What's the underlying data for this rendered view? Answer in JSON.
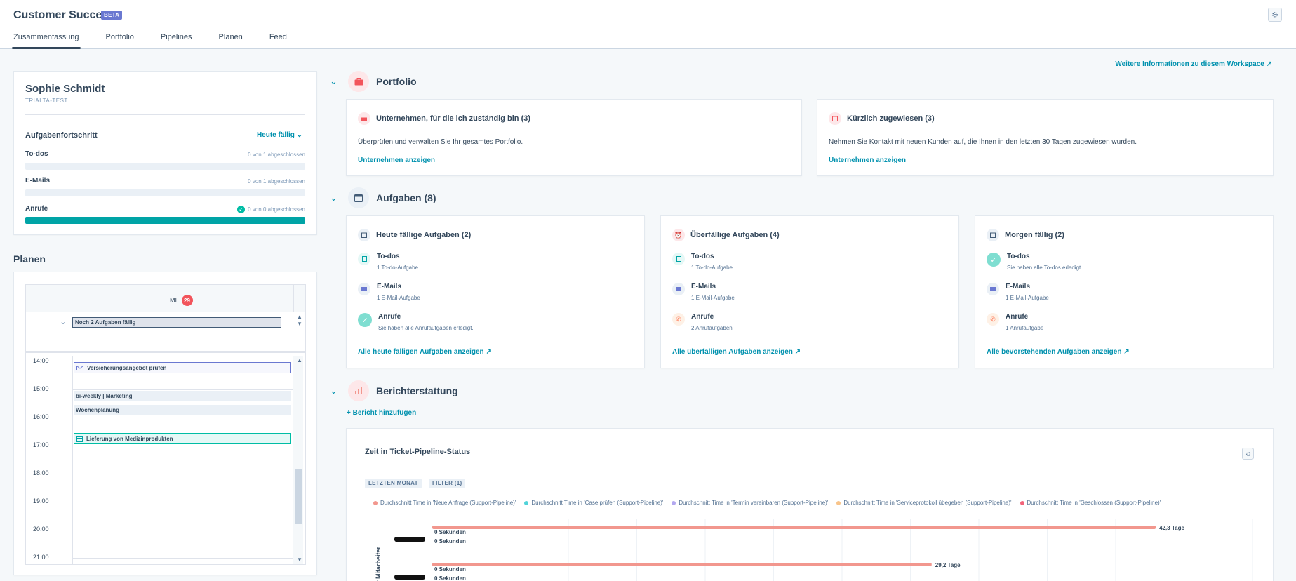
{
  "header": {
    "title": "Customer Success",
    "badge": "BETA",
    "tabs": [
      {
        "label": "Zusammenfassung",
        "active": true
      },
      {
        "label": "Portfolio",
        "active": false
      },
      {
        "label": "Pipelines",
        "active": false
      },
      {
        "label": "Planen",
        "active": false
      },
      {
        "label": "Feed",
        "active": false
      }
    ]
  },
  "profile": {
    "name": "Sophie Schmidt",
    "subtitle": "TRIALTA-TEST",
    "progress_title": "Aufgabenfortschritt",
    "filter_label": "Heute fällig ⌄",
    "rows": [
      {
        "label": "To-dos",
        "meta": "0 von 1 abgeschlossen",
        "progress": 0
      },
      {
        "label": "E-Mails",
        "meta": "0 von 1 abgeschlossen",
        "progress": 0
      },
      {
        "label": "Anrufe",
        "meta": "0 von 0 abgeschlossen",
        "progress": 1.0
      }
    ]
  },
  "planen": {
    "title": "Planen",
    "day_label": "MI.",
    "day_number": "29",
    "allday_event": "Noch 2 Aufgaben fällig",
    "times": [
      "14:00",
      "15:00",
      "16:00",
      "17:00",
      "18:00",
      "19:00",
      "20:00",
      "21:00"
    ],
    "events": [
      {
        "label": "Versicherungsangebot prüfen",
        "style": "blue",
        "icon": "mail-icon"
      },
      {
        "label": "bi-weekly | Marketing",
        "style": "grey"
      },
      {
        "label": "Wochenplanung",
        "style": "grey"
      },
      {
        "label": "Lieferung von Medizinprodukten",
        "style": "green",
        "icon": "calendar-icon"
      }
    ]
  },
  "workspace_link": "Weitere Informationen zu diesem Workspace",
  "portfolio": {
    "title": "Portfolio",
    "cards": [
      {
        "title": "Unternehmen, für die ich zuständig bin (3)",
        "desc": "Überprüfen und verwalten Sie Ihr gesamtes Portfolio.",
        "link": "Unternehmen anzeigen"
      },
      {
        "title": "Kürzlich zugewiesen (3)",
        "desc": "Nehmen Sie Kontakt mit neuen Kunden auf, die Ihnen in den letzten 30 Tagen zugewiesen wurden.",
        "link": "Unternehmen anzeigen"
      }
    ]
  },
  "aufgaben": {
    "title": "Aufgaben (8)",
    "cards": [
      {
        "title": "Heute fällige Aufgaben (2)",
        "items": [
          {
            "label": "To-dos",
            "sub": "1 To-do-Aufgabe"
          },
          {
            "label": "E-Mails",
            "sub": "1 E-Mail-Aufgabe"
          },
          {
            "label": "Anrufe",
            "sub": "Sie haben alle Anrufaufgaben erledigt."
          }
        ],
        "link": "Alle heute fälligen Aufgaben anzeigen"
      },
      {
        "title": "Überfällige Aufgaben (4)",
        "items": [
          {
            "label": "To-dos",
            "sub": "1 To-do-Aufgabe"
          },
          {
            "label": "E-Mails",
            "sub": "1 E-Mail-Aufgabe"
          },
          {
            "label": "Anrufe",
            "sub": "2 Anrufaufgaben"
          }
        ],
        "link": "Alle überfälligen Aufgaben anzeigen"
      },
      {
        "title": "Morgen fällig (2)",
        "items": [
          {
            "label": "To-dos",
            "sub": "Sie haben alle To-dos erledigt."
          },
          {
            "label": "E-Mails",
            "sub": "1 E-Mail-Aufgabe"
          },
          {
            "label": "Anrufe",
            "sub": "1 Anrufaufgabe"
          }
        ],
        "link": "Alle bevorstehenden Aufgaben anzeigen"
      }
    ]
  },
  "reporting": {
    "title": "Berichterstattung",
    "add_label": "Bericht hinzufügen",
    "report_title": "Zeit in Ticket-Pipeline-Status",
    "chips": [
      "LETZTEN MONAT",
      "FILTER (1)"
    ],
    "legend": [
      {
        "label": "Durchschnitt Time in 'Neue Anfrage (Support-Pipeline)'",
        "color": "#f2978e"
      },
      {
        "label": "Durchschnitt Time in 'Case prüfen (Support-Pipeline)'",
        "color": "#51d3d9"
      },
      {
        "label": "Durchschnitt Time in 'Termin vereinbaren (Support-Pipeline)'",
        "color": "#b3a8f0"
      },
      {
        "label": "Durchschnitt Time in 'Serviceprotokoll übegeben (Support-Pipeline)'",
        "color": "#f8c48a"
      },
      {
        "label": "Durchschnitt Time in 'Geschlossen (Support-Pipeline)'",
        "color": "#f2647a"
      }
    ],
    "y_axis_label": "r Mitarbeiter",
    "zero_label": "0 Sekunden"
  },
  "chart_data": {
    "type": "bar",
    "orientation": "horizontal",
    "title": "Zeit in Ticket-Pipeline-Status",
    "ylabel": "r Mitarbeiter",
    "categories": [
      "(redacted)",
      "(redacted)"
    ],
    "series": [
      {
        "name": "Durchschnitt Time in 'Neue Anfrage (Support-Pipeline)'",
        "values": [
          42.3,
          29.2
        ],
        "labels": [
          "42,3 Tage",
          "29,2 Tage"
        ]
      },
      {
        "name": "Durchschnitt Time in 'Case prüfen (Support-Pipeline)'",
        "values": [
          0,
          0
        ]
      },
      {
        "name": "Durchschnitt Time in 'Termin vereinbaren (Support-Pipeline)'",
        "values": [
          0,
          null
        ]
      }
    ],
    "xlim": [
      0,
      48
    ]
  }
}
